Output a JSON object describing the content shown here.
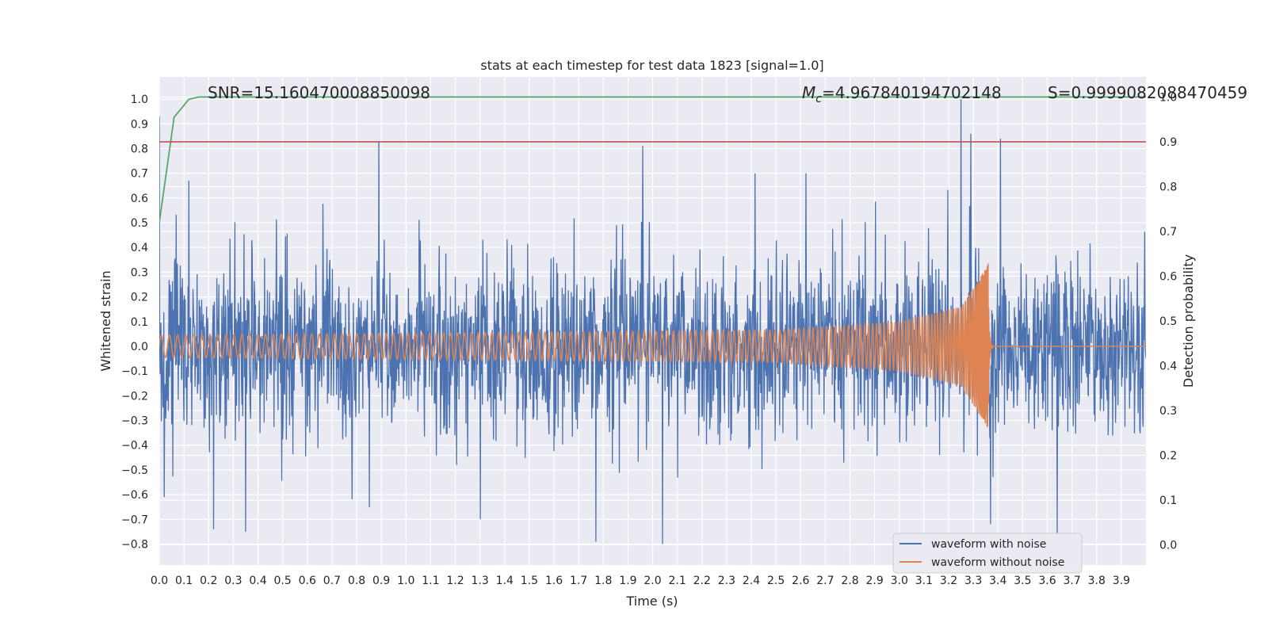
{
  "chart_data": {
    "type": "line",
    "title": "stats at each timestep for test data 1823 [signal=1.0]",
    "xlabel": "Time (s)",
    "ylabel": "Whitened strain",
    "ylabel_right": "Detection probability",
    "xlim": [
      0.0,
      4.0
    ],
    "ylim": [
      -0.885,
      1.09
    ],
    "ylim_right": [
      -0.045,
      1.045
    ],
    "x_ticks": [
      "0.0",
      "0.1",
      "0.2",
      "0.3",
      "0.4",
      "0.5",
      "0.6",
      "0.7",
      "0.8",
      "0.9",
      "1.0",
      "1.1",
      "1.2",
      "1.3",
      "1.4",
      "1.5",
      "1.6",
      "1.7",
      "1.8",
      "1.9",
      "2.0",
      "2.1",
      "2.2",
      "2.3",
      "2.4",
      "2.5",
      "2.6",
      "2.7",
      "2.8",
      "2.9",
      "3.0",
      "3.1",
      "3.2",
      "3.3",
      "3.4",
      "3.5",
      "3.6",
      "3.7",
      "3.8",
      "3.9"
    ],
    "y_ticks": [
      "−0.8",
      "−0.7",
      "−0.6",
      "−0.5",
      "−0.4",
      "−0.3",
      "−0.2",
      "−0.1",
      "0.0",
      "0.1",
      "0.2",
      "0.3",
      "0.4",
      "0.5",
      "0.6",
      "0.7",
      "0.8",
      "0.9",
      "1.0"
    ],
    "y_ticks_right": [
      "0.0",
      "0.1",
      "0.2",
      "0.3",
      "0.4",
      "0.5",
      "0.6",
      "0.7",
      "0.8",
      "0.9",
      "1.0"
    ],
    "grid": true,
    "legend_position": "bottom-right",
    "annotations": {
      "snr": "SNR=15.160470008850098",
      "mc_symbol": "M",
      "mc_sub": "c",
      "mc_value": "=4.967840194702148",
      "s": "S=0.9999082088470459"
    },
    "series": [
      {
        "name": "waveform with noise",
        "color": "#4c72b0",
        "axis": "left",
        "description": "dense noisy strain, values mostly within -0.6..0.6, notable spikes",
        "spikes": [
          {
            "x": 0.0,
            "y": 0.93
          },
          {
            "x": 0.02,
            "y": -0.61
          },
          {
            "x": 0.12,
            "y": 0.67
          },
          {
            "x": 0.22,
            "y": -0.74
          },
          {
            "x": 0.35,
            "y": -0.75
          },
          {
            "x": 0.89,
            "y": 0.83
          },
          {
            "x": 1.77,
            "y": -0.79
          },
          {
            "x": 1.96,
            "y": 0.81
          },
          {
            "x": 2.04,
            "y": -0.8
          },
          {
            "x": 3.25,
            "y": 1.0
          },
          {
            "x": 3.29,
            "y": 0.86
          },
          {
            "x": 3.37,
            "y": -0.72
          },
          {
            "x": 3.41,
            "y": 0.84
          },
          {
            "x": 3.64,
            "y": -0.77
          }
        ]
      },
      {
        "name": "waveform without noise",
        "color": "#dd8452",
        "axis": "left",
        "description": "chirp signal merging at ~3.36 s",
        "amplitude_points": [
          [
            0.0,
            0.045
          ],
          [
            2.5,
            0.065
          ],
          [
            3.0,
            0.1
          ],
          [
            3.25,
            0.16
          ],
          [
            3.36,
            0.33
          ]
        ],
        "merger_time": 3.36
      },
      {
        "name": "detection probability",
        "color": "#55a868",
        "axis": "right",
        "x": [
          0.0,
          0.06,
          0.12,
          0.16,
          0.25,
          4.0
        ],
        "values": [
          0.72,
          0.955,
          0.995,
          1.0,
          1.0,
          1.0
        ]
      },
      {
        "name": "threshold",
        "color": "#c44e52",
        "axis": "right",
        "x": [
          0.0,
          4.0
        ],
        "values": [
          0.9,
          0.9
        ]
      }
    ]
  }
}
